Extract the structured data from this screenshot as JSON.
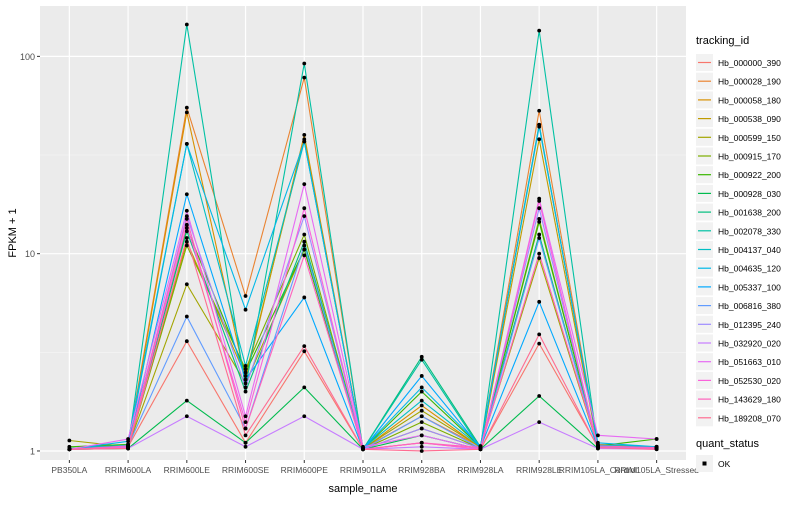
{
  "chart_data": {
    "type": "line",
    "xlabel": "sample_name",
    "ylabel": "FPKM + 1",
    "y_scale": "log10",
    "ylim": [
      0.9,
      180
    ],
    "y_ticks": [
      1,
      10,
      100
    ],
    "y_tick_labels": [
      "1",
      "10",
      "100"
    ],
    "categories": [
      "PB350LA",
      "RRIM600LA",
      "RRIM600LE",
      "RRIM600SE",
      "RRIM600PE",
      "RRIM901LA",
      "RRIM928BA",
      "RRIM928LA",
      "RRIM928LE",
      "RRIM105LA_Control",
      "RRIM105LA_Stressed"
    ],
    "legend": {
      "title": "tracking_id",
      "placement": "right",
      "status_title": "quant_status",
      "status_items": [
        {
          "label": "OK",
          "color": "#000000"
        }
      ]
    },
    "grid": true,
    "background": "#ebebeb",
    "series": [
      {
        "name": "Hb_000000_390",
        "color": "#f8766d",
        "values": [
          1.02,
          1.05,
          3.6,
          1.1,
          3.2,
          1.02,
          1.1,
          1.02,
          3.5,
          1.05,
          1.03
        ]
      },
      {
        "name": "Hb_000028_190",
        "color": "#ea8331",
        "values": [
          1.03,
          1.08,
          55,
          6.1,
          78,
          1.03,
          1.5,
          1.05,
          53,
          1.08,
          1.05
        ]
      },
      {
        "name": "Hb_000058_180",
        "color": "#d89000",
        "values": [
          1.02,
          1.06,
          52,
          2.3,
          40,
          1.02,
          1.7,
          1.04,
          45,
          1.06,
          1.04
        ]
      },
      {
        "name": "Hb_000538_090",
        "color": "#c09b00",
        "values": [
          1.02,
          1.04,
          11.5,
          2.4,
          38,
          1.02,
          1.3,
          1.03,
          38,
          1.05,
          1.03
        ]
      },
      {
        "name": "Hb_000599_150",
        "color": "#a3a500",
        "values": [
          1.13,
          1.05,
          7.0,
          2.2,
          10.5,
          1.03,
          1.6,
          1.05,
          9.5,
          1.05,
          1.04
        ]
      },
      {
        "name": "Hb_000915_170",
        "color": "#7cae00",
        "values": [
          1.02,
          1.03,
          11.0,
          2.6,
          12.5,
          1.02,
          1.4,
          1.03,
          15.0,
          1.04,
          1.03
        ]
      },
      {
        "name": "Hb_000922_200",
        "color": "#39b600",
        "values": [
          1.05,
          1.08,
          13.5,
          2.5,
          10.5,
          1.02,
          2.0,
          1.05,
          14.5,
          1.06,
          1.15
        ]
      },
      {
        "name": "Hb_000928_030",
        "color": "#00bb4e",
        "values": [
          1.02,
          1.03,
          1.8,
          1.1,
          2.1,
          1.02,
          1.2,
          1.02,
          1.9,
          1.03,
          1.03
        ]
      },
      {
        "name": "Hb_001638_200",
        "color": "#00bf7d",
        "values": [
          1.02,
          1.04,
          13.0,
          2.0,
          11.5,
          1.02,
          3.0,
          1.05,
          12.5,
          1.05,
          1.04
        ]
      },
      {
        "name": "Hb_002078_330",
        "color": "#00c1a3",
        "values": [
          1.02,
          1.04,
          145,
          2.1,
          92,
          1.02,
          2.9,
          1.03,
          135,
          1.04,
          1.03
        ]
      },
      {
        "name": "Hb_004137_040",
        "color": "#00bfc4",
        "values": [
          1.03,
          1.07,
          36,
          2.7,
          37,
          1.03,
          1.8,
          1.05,
          45,
          1.07,
          1.05
        ]
      },
      {
        "name": "Hb_004635_120",
        "color": "#00b8e7",
        "values": [
          1.02,
          1.12,
          36,
          5.2,
          37,
          1.03,
          2.1,
          1.06,
          44,
          1.1,
          1.05
        ]
      },
      {
        "name": "Hb_005337_100",
        "color": "#00a9ff",
        "values": [
          1.02,
          1.05,
          20,
          2.3,
          6.0,
          1.02,
          2.4,
          1.04,
          5.7,
          1.05,
          1.03
        ]
      },
      {
        "name": "Hb_006816_380",
        "color": "#619cff",
        "values": [
          1.02,
          1.06,
          4.8,
          1.3,
          11.0,
          1.02,
          1.5,
          1.03,
          12.0,
          1.05,
          1.03
        ]
      },
      {
        "name": "Hb_012395_240",
        "color": "#9e8bff",
        "values": [
          1.02,
          1.05,
          15.5,
          2.1,
          15.5,
          1.02,
          1.3,
          1.03,
          17.0,
          1.04,
          1.03
        ]
      },
      {
        "name": "Hb_032920_020",
        "color": "#c77cff",
        "values": [
          1.02,
          1.03,
          1.5,
          1.05,
          1.5,
          1.02,
          1.05,
          1.02,
          1.4,
          1.03,
          1.02
        ]
      },
      {
        "name": "Hb_051663_010",
        "color": "#e76bf3",
        "values": [
          1.02,
          1.15,
          16.5,
          1.5,
          22.5,
          1.05,
          1.2,
          1.02,
          19.0,
          1.2,
          1.15
        ]
      },
      {
        "name": "Hb_052530_020",
        "color": "#fa62db",
        "values": [
          1.02,
          1.04,
          14.0,
          1.4,
          17.0,
          1.02,
          1.1,
          1.02,
          18.5,
          1.04,
          1.03
        ]
      },
      {
        "name": "Hb_143629_180",
        "color": "#ff62bc",
        "values": [
          1.02,
          1.06,
          15.0,
          1.3,
          9.8,
          1.02,
          1.1,
          1.04,
          10.0,
          1.06,
          1.04
        ]
      },
      {
        "name": "Hb_189208_070",
        "color": "#ff6c91",
        "values": [
          1.02,
          1.03,
          12.0,
          1.2,
          3.4,
          1.02,
          1.0,
          1.02,
          3.9,
          1.04,
          1.02
        ]
      }
    ]
  }
}
